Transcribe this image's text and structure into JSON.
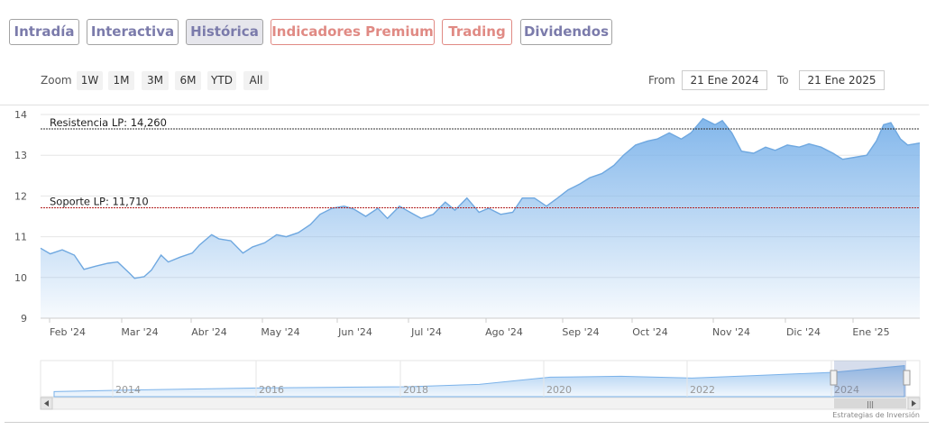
{
  "tabs": [
    {
      "label": "Intradía",
      "style": "purple",
      "active": false
    },
    {
      "label": "Interactiva",
      "style": "purple",
      "active": false
    },
    {
      "label": "Histórica",
      "style": "purple",
      "active": true
    },
    {
      "label": "Indicadores Premium",
      "style": "red",
      "active": false
    },
    {
      "label": "Trading",
      "style": "red",
      "active": false
    },
    {
      "label": "Dividendos",
      "style": "purple",
      "active": false
    }
  ],
  "zoom": {
    "label": "Zoom",
    "buttons": [
      "1W",
      "1M",
      "3M",
      "6M",
      "YTD",
      "All"
    ]
  },
  "range": {
    "from_label": "From",
    "from_value": "21 Ene 2024",
    "to_label": "To",
    "to_value": "21 Ene 2025"
  },
  "credit": "Estrategias de Inversión",
  "colors": {
    "line": "#6fa8e0",
    "fill_top": "#7cb3ea",
    "resistance": "#333333",
    "support": "#b22222",
    "tab_purple": "#7b7bab",
    "tab_red": "#e08a84"
  },
  "chart_data": {
    "type": "area",
    "title": "",
    "xlabel": "",
    "ylabel": "",
    "ylim": [
      9,
      14.2
    ],
    "yticks": [
      9,
      10,
      11,
      12,
      13,
      14
    ],
    "xticks": [
      "Feb '24",
      "Mar '24",
      "Abr '24",
      "May '24",
      "Jun '24",
      "Jul '24",
      "Ago '24",
      "Sep '24",
      "Oct '24",
      "Nov '24",
      "Dic '24",
      "Ene '25"
    ],
    "grid": true,
    "series": [
      {
        "points": [
          [
            "2024-01-22",
            10.72
          ],
          [
            "2024-01-26",
            10.58
          ],
          [
            "2024-01-31",
            10.68
          ],
          [
            "2024-02-05",
            10.55
          ],
          [
            "2024-02-09",
            10.2
          ],
          [
            "2024-02-14",
            10.28
          ],
          [
            "2024-02-19",
            10.35
          ],
          [
            "2024-02-23",
            10.38
          ],
          [
            "2024-02-28",
            10.1
          ],
          [
            "2024-03-01",
            9.98
          ],
          [
            "2024-03-05",
            10.02
          ],
          [
            "2024-03-08",
            10.18
          ],
          [
            "2024-03-12",
            10.55
          ],
          [
            "2024-03-15",
            10.38
          ],
          [
            "2024-03-20",
            10.5
          ],
          [
            "2024-03-25",
            10.6
          ],
          [
            "2024-03-28",
            10.8
          ],
          [
            "2024-04-02",
            11.05
          ],
          [
            "2024-04-05",
            10.95
          ],
          [
            "2024-04-10",
            10.9
          ],
          [
            "2024-04-15",
            10.6
          ],
          [
            "2024-04-19",
            10.75
          ],
          [
            "2024-04-24",
            10.85
          ],
          [
            "2024-04-29",
            11.05
          ],
          [
            "2024-05-03",
            11.0
          ],
          [
            "2024-05-08",
            11.1
          ],
          [
            "2024-05-13",
            11.3
          ],
          [
            "2024-05-17",
            11.55
          ],
          [
            "2024-05-22",
            11.7
          ],
          [
            "2024-05-27",
            11.75
          ],
          [
            "2024-05-31",
            11.68
          ],
          [
            "2024-06-05",
            11.5
          ],
          [
            "2024-06-10",
            11.7
          ],
          [
            "2024-06-14",
            11.45
          ],
          [
            "2024-06-19",
            11.75
          ],
          [
            "2024-06-24",
            11.58
          ],
          [
            "2024-06-28",
            11.45
          ],
          [
            "2024-07-03",
            11.55
          ],
          [
            "2024-07-08",
            11.85
          ],
          [
            "2024-07-12",
            11.65
          ],
          [
            "2024-07-17",
            11.95
          ],
          [
            "2024-07-22",
            11.6
          ],
          [
            "2024-07-26",
            11.7
          ],
          [
            "2024-07-31",
            11.55
          ],
          [
            "2024-08-05",
            11.6
          ],
          [
            "2024-08-09",
            11.95
          ],
          [
            "2024-08-14",
            11.95
          ],
          [
            "2024-08-19",
            11.75
          ],
          [
            "2024-08-23",
            11.92
          ],
          [
            "2024-08-28",
            12.15
          ],
          [
            "2024-09-02",
            12.3
          ],
          [
            "2024-09-06",
            12.45
          ],
          [
            "2024-09-11",
            12.55
          ],
          [
            "2024-09-16",
            12.75
          ],
          [
            "2024-09-20",
            13.0
          ],
          [
            "2024-09-25",
            13.25
          ],
          [
            "2024-09-30",
            13.35
          ],
          [
            "2024-10-04",
            13.4
          ],
          [
            "2024-10-09",
            13.55
          ],
          [
            "2024-10-14",
            13.4
          ],
          [
            "2024-10-18",
            13.55
          ],
          [
            "2024-10-23",
            13.9
          ],
          [
            "2024-10-28",
            13.75
          ],
          [
            "2024-10-31",
            13.85
          ],
          [
            "2024-11-04",
            13.55
          ],
          [
            "2024-11-08",
            13.1
          ],
          [
            "2024-11-13",
            13.05
          ],
          [
            "2024-11-18",
            13.2
          ],
          [
            "2024-11-22",
            13.12
          ],
          [
            "2024-11-27",
            13.25
          ],
          [
            "2024-12-02",
            13.2
          ],
          [
            "2024-12-06",
            13.28
          ],
          [
            "2024-12-11",
            13.2
          ],
          [
            "2024-12-16",
            13.05
          ],
          [
            "2024-12-20",
            12.9
          ],
          [
            "2024-12-25",
            12.95
          ],
          [
            "2024-12-30",
            13.0
          ],
          [
            "2025-01-03",
            13.35
          ],
          [
            "2025-01-06",
            13.75
          ],
          [
            "2025-01-09",
            13.8
          ],
          [
            "2025-01-13",
            13.4
          ],
          [
            "2025-01-16",
            13.25
          ],
          [
            "2025-01-21",
            13.3
          ]
        ]
      }
    ],
    "reference_lines": [
      {
        "label": "Resistencia LP: 14,260",
        "value": 14.26,
        "style": "dotted-dark"
      },
      {
        "label": "Soporte LP: 11,710",
        "value": 11.71,
        "style": "dotted-red"
      }
    ],
    "navigator": {
      "xticks": [
        "2014",
        "2016",
        "2018",
        "2020",
        "2022",
        "2024"
      ],
      "points": [
        [
          "2013",
          0.05
        ],
        [
          "2014",
          0.1
        ],
        [
          "2015",
          0.14
        ],
        [
          "2016",
          0.18
        ],
        [
          "2017",
          0.2
        ],
        [
          "2018",
          0.22
        ],
        [
          "2019",
          0.3
        ],
        [
          "2020",
          0.55
        ],
        [
          "2021",
          0.58
        ],
        [
          "2022",
          0.52
        ],
        [
          "2023",
          0.62
        ],
        [
          "2024",
          0.72
        ],
        [
          "2025",
          0.95
        ]
      ]
    }
  }
}
